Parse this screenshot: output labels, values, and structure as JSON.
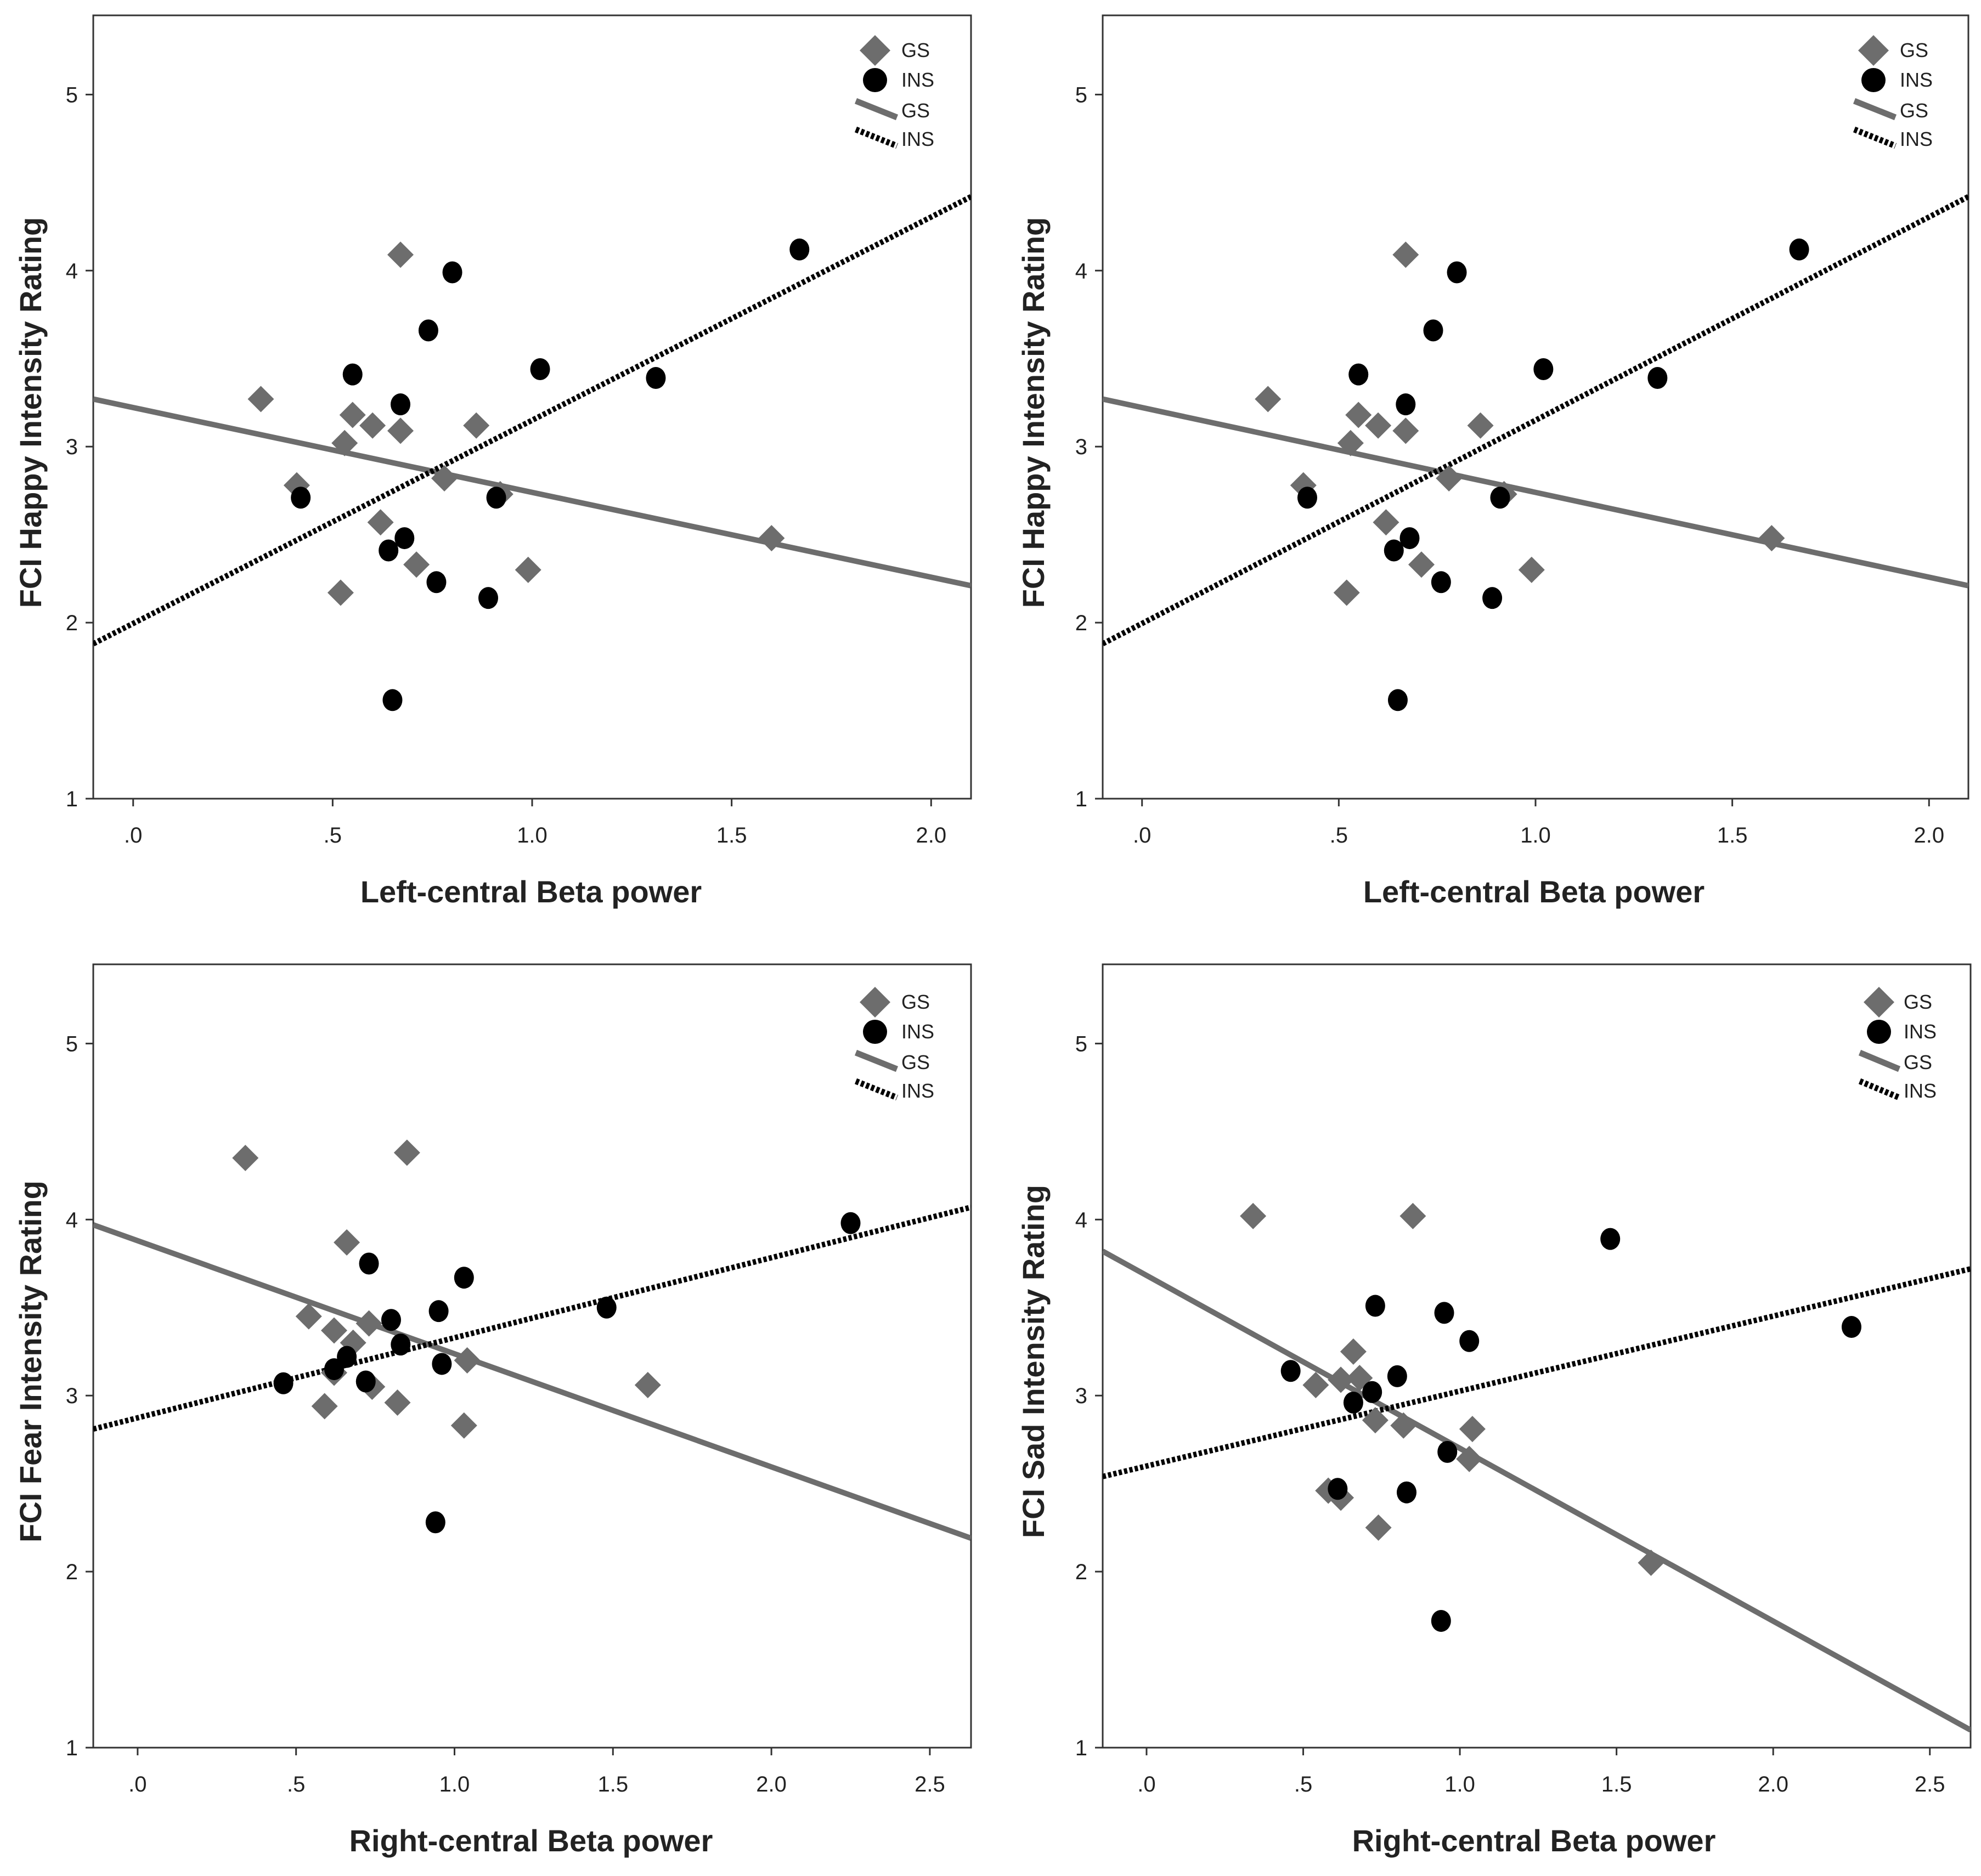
{
  "chart_data": [
    {
      "type": "scatter",
      "panel": "top-left",
      "xlabel": "Left-central Beta power",
      "ylabel": "FCI Happy Intensity Rating",
      "xlim": [
        -0.1,
        2.1
      ],
      "ylim": [
        1,
        5.45
      ],
      "xticks": [
        0,
        0.5,
        1.0,
        1.5,
        2.0
      ],
      "xtick_labels": [
        ".0",
        ".5",
        "1.0",
        "1.5",
        "2.0"
      ],
      "yticks": [
        1,
        2,
        3,
        4,
        5
      ],
      "ytick_labels": [
        "1",
        "2",
        "3",
        "4",
        "5"
      ],
      "legend": {
        "position": "top-right",
        "entries": [
          "GS",
          "INS",
          "GS",
          "INS"
        ]
      },
      "series": [
        {
          "name": "GS",
          "marker": "diamond",
          "points": [
            [
              0.32,
              3.27
            ],
            [
              0.41,
              2.78
            ],
            [
              0.52,
              2.17
            ],
            [
              0.53,
              3.02
            ],
            [
              0.55,
              3.18
            ],
            [
              0.6,
              3.12
            ],
            [
              0.62,
              2.57
            ],
            [
              0.67,
              4.09
            ],
            [
              0.67,
              3.09
            ],
            [
              0.71,
              2.33
            ],
            [
              0.78,
              2.82
            ],
            [
              0.86,
              3.12
            ],
            [
              0.92,
              2.73
            ],
            [
              0.99,
              2.3
            ],
            [
              1.6,
              2.48
            ]
          ],
          "fit": [
            [
              -0.1,
              3.27
            ],
            [
              2.1,
              2.21
            ]
          ]
        },
        {
          "name": "INS",
          "marker": "circle",
          "points": [
            [
              0.42,
              2.71
            ],
            [
              0.55,
              3.41
            ],
            [
              0.64,
              2.41
            ],
            [
              0.65,
              1.56
            ],
            [
              0.67,
              3.24
            ],
            [
              0.68,
              2.48
            ],
            [
              0.74,
              3.66
            ],
            [
              0.76,
              2.23
            ],
            [
              0.8,
              3.99
            ],
            [
              0.89,
              2.14
            ],
            [
              0.91,
              2.71
            ],
            [
              1.02,
              3.44
            ],
            [
              1.31,
              3.39
            ],
            [
              1.67,
              4.12
            ]
          ],
          "fit": [
            [
              -0.1,
              1.88
            ],
            [
              2.1,
              4.42
            ]
          ]
        }
      ]
    },
    {
      "type": "scatter",
      "panel": "top-right",
      "xlabel": "Left-central Beta power",
      "ylabel": "FCI Happy Intensity Rating",
      "xlim": [
        -0.1,
        2.1
      ],
      "ylim": [
        1,
        5.45
      ],
      "xticks": [
        0,
        0.5,
        1.0,
        1.5,
        2.0
      ],
      "xtick_labels": [
        ".0",
        ".5",
        "1.0",
        "1.5",
        "2.0"
      ],
      "yticks": [
        1,
        2,
        3,
        4,
        5
      ],
      "ytick_labels": [
        "1",
        "2",
        "3",
        "4",
        "5"
      ],
      "legend": {
        "position": "top-right",
        "entries": [
          "GS",
          "INS",
          "GS",
          "INS"
        ]
      },
      "series": [
        {
          "name": "GS",
          "marker": "diamond",
          "points": [
            [
              0.32,
              3.27
            ],
            [
              0.41,
              2.78
            ],
            [
              0.52,
              2.17
            ],
            [
              0.53,
              3.02
            ],
            [
              0.55,
              3.18
            ],
            [
              0.6,
              3.12
            ],
            [
              0.62,
              2.57
            ],
            [
              0.67,
              4.09
            ],
            [
              0.67,
              3.09
            ],
            [
              0.71,
              2.33
            ],
            [
              0.78,
              2.82
            ],
            [
              0.86,
              3.12
            ],
            [
              0.92,
              2.73
            ],
            [
              0.99,
              2.3
            ],
            [
              1.6,
              2.48
            ]
          ],
          "fit": [
            [
              -0.1,
              3.27
            ],
            [
              2.1,
              2.21
            ]
          ]
        },
        {
          "name": "INS",
          "marker": "circle",
          "points": [
            [
              0.42,
              2.71
            ],
            [
              0.55,
              3.41
            ],
            [
              0.64,
              2.41
            ],
            [
              0.65,
              1.56
            ],
            [
              0.67,
              3.24
            ],
            [
              0.68,
              2.48
            ],
            [
              0.74,
              3.66
            ],
            [
              0.76,
              2.23
            ],
            [
              0.8,
              3.99
            ],
            [
              0.89,
              2.14
            ],
            [
              0.91,
              2.71
            ],
            [
              1.02,
              3.44
            ],
            [
              1.31,
              3.39
            ],
            [
              1.67,
              4.12
            ]
          ],
          "fit": [
            [
              -0.1,
              1.88
            ],
            [
              2.1,
              4.42
            ]
          ]
        }
      ]
    },
    {
      "type": "scatter",
      "panel": "bottom-left",
      "xlabel": "Right-central Beta power",
      "ylabel": "FCI Fear Intensity Rating",
      "xlim": [
        -0.14,
        2.63
      ],
      "ylim": [
        1,
        5.45
      ],
      "xticks": [
        0,
        0.5,
        1.0,
        1.5,
        2.0,
        2.5
      ],
      "xtick_labels": [
        ".0",
        ".5",
        "1.0",
        "1.5",
        "2.0",
        "2.5"
      ],
      "yticks": [
        1,
        2,
        3,
        4,
        5
      ],
      "ytick_labels": [
        "1",
        "2",
        "3",
        "4",
        "5"
      ],
      "legend": {
        "position": "top-right",
        "entries": [
          "GS",
          "INS",
          "GS",
          "INS"
        ]
      },
      "series": [
        {
          "name": "GS",
          "marker": "diamond",
          "points": [
            [
              0.34,
              4.35
            ],
            [
              0.54,
              3.45
            ],
            [
              0.59,
              2.94
            ],
            [
              0.62,
              3.13
            ],
            [
              0.62,
              3.37
            ],
            [
              0.66,
              3.87
            ],
            [
              0.68,
              3.3
            ],
            [
              0.73,
              3.41
            ],
            [
              0.74,
              3.05
            ],
            [
              0.82,
              2.96
            ],
            [
              0.85,
              4.38
            ],
            [
              1.03,
              2.83
            ],
            [
              1.04,
              3.2
            ],
            [
              1.61,
              3.06
            ]
          ],
          "fit": [
            [
              -0.14,
              3.97
            ],
            [
              2.63,
              2.19
            ]
          ]
        },
        {
          "name": "INS",
          "marker": "circle",
          "points": [
            [
              0.46,
              3.07
            ],
            [
              0.62,
              3.15
            ],
            [
              0.66,
              3.22
            ],
            [
              0.72,
              3.08
            ],
            [
              0.73,
              3.75
            ],
            [
              0.8,
              3.43
            ],
            [
              0.83,
              3.29
            ],
            [
              0.95,
              3.48
            ],
            [
              0.94,
              2.28
            ],
            [
              0.96,
              3.18
            ],
            [
              1.03,
              3.67
            ],
            [
              1.48,
              3.5
            ],
            [
              2.25,
              3.98
            ]
          ],
          "fit": [
            [
              -0.14,
              2.81
            ],
            [
              2.63,
              4.07
            ]
          ]
        }
      ]
    },
    {
      "type": "scatter",
      "panel": "bottom-right",
      "xlabel": "Right-central Beta power",
      "ylabel": "FCI Sad Intensity Rating",
      "xlim": [
        -0.14,
        2.63
      ],
      "ylim": [
        1,
        5.45
      ],
      "xticks": [
        0,
        0.5,
        1.0,
        1.5,
        2.0,
        2.5
      ],
      "xtick_labels": [
        ".0",
        ".5",
        "1.0",
        "1.5",
        "2.0",
        "2.5"
      ],
      "yticks": [
        1,
        2,
        3,
        4,
        5
      ],
      "ytick_labels": [
        "1",
        "2",
        "3",
        "4",
        "5"
      ],
      "legend": {
        "position": "top-right",
        "entries": [
          "GS",
          "INS",
          "GS",
          "INS"
        ]
      },
      "series": [
        {
          "name": "GS",
          "marker": "diamond",
          "points": [
            [
              0.34,
              4.02
            ],
            [
              0.54,
              3.06
            ],
            [
              0.58,
              2.46
            ],
            [
              0.62,
              2.42
            ],
            [
              0.62,
              3.09
            ],
            [
              0.66,
              3.25
            ],
            [
              0.68,
              3.1
            ],
            [
              0.73,
              2.86
            ],
            [
              0.74,
              2.25
            ],
            [
              0.82,
              2.83
            ],
            [
              0.85,
              4.02
            ],
            [
              1.03,
              2.64
            ],
            [
              1.04,
              2.81
            ],
            [
              1.61,
              2.05
            ]
          ],
          "fit": [
            [
              -0.14,
              3.82
            ],
            [
              2.63,
              1.1
            ]
          ]
        },
        {
          "name": "INS",
          "marker": "circle",
          "points": [
            [
              0.46,
              3.14
            ],
            [
              0.61,
              2.47
            ],
            [
              0.66,
              2.96
            ],
            [
              0.72,
              3.02
            ],
            [
              0.73,
              3.51
            ],
            [
              0.8,
              3.11
            ],
            [
              0.83,
              2.45
            ],
            [
              0.94,
              1.72
            ],
            [
              0.95,
              3.47
            ],
            [
              0.96,
              2.68
            ],
            [
              1.03,
              3.31
            ],
            [
              1.48,
              3.89
            ],
            [
              2.25,
              3.39
            ]
          ],
          "fit": [
            [
              -0.14,
              2.54
            ],
            [
              2.63,
              3.72
            ]
          ]
        }
      ]
    }
  ]
}
